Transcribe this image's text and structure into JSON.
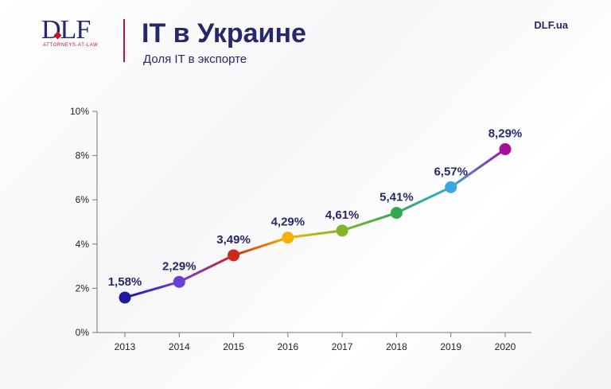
{
  "header": {
    "logo": "DLF",
    "logo_sub": "ATTORNEYS-AT-LAW",
    "title": "IT в Украине",
    "subtitle": "Доля IT в экспорте",
    "site": "DLF.ua"
  },
  "chart_data": {
    "type": "line",
    "x": [
      "2013",
      "2014",
      "2015",
      "2016",
      "2017",
      "2018",
      "2019",
      "2020"
    ],
    "values": [
      1.58,
      2.29,
      3.49,
      4.29,
      4.61,
      5.41,
      6.57,
      8.29
    ],
    "labels": [
      "1,58%",
      "2,29%",
      "3,49%",
      "4,29%",
      "4,61%",
      "5,41%",
      "6,57%",
      "8,29%"
    ],
    "point_colors": [
      "#1d1a9e",
      "#6a3fd8",
      "#d0291c",
      "#f3b400",
      "#82b52a",
      "#33a852",
      "#3aa7e0",
      "#a4109a"
    ],
    "ylim": [
      0,
      10
    ],
    "yticks": [
      0,
      2,
      4,
      6,
      8,
      10
    ],
    "ytick_labels": [
      "0%",
      "2%",
      "4%",
      "6%",
      "8%",
      "10%"
    ],
    "grid": false
  }
}
